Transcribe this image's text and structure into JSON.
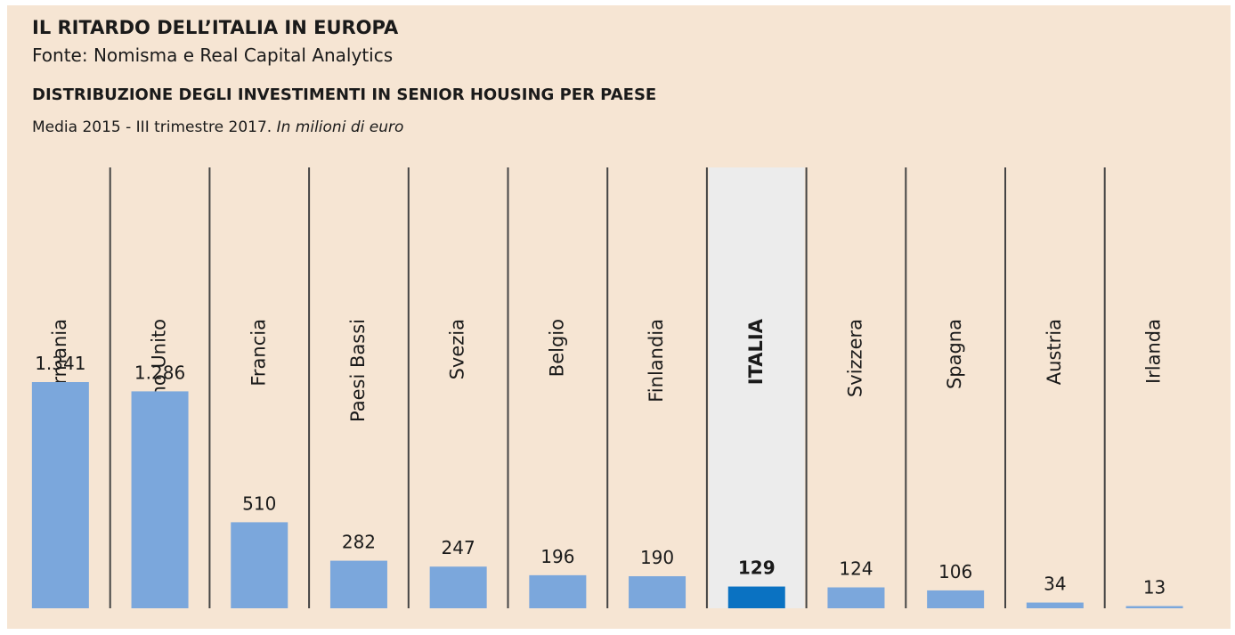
{
  "chart_data": {
    "type": "bar",
    "title": "IL RITARDO DELL’ITALIA IN EUROPA",
    "source": "Fonte: Nomisma e Real Capital Analytics",
    "subtitle": "DISTRIBUZIONE DEGLI INVESTIMENTI IN SENIOR HOUSING PER PAESE",
    "note": "Media 2015 - III trimestre 2017.",
    "unit": "In milioni di euro",
    "categories": [
      "Germania",
      "Regno Unito",
      "Francia",
      "Paesi Bassi",
      "Svezia",
      "Belgio",
      "Finlandia",
      "ITALIA",
      "Svizzera",
      "Spagna",
      "Austria",
      "Irlanda"
    ],
    "values": [
      1341,
      1286,
      510,
      282,
      247,
      196,
      190,
      129,
      124,
      106,
      34,
      13
    ],
    "value_labels": [
      "1.341",
      "1.286",
      "510",
      "282",
      "247",
      "196",
      "190",
      "129",
      "124",
      "106",
      "34",
      "13"
    ],
    "color": "#7ba7dc",
    "highlight": 7,
    "highlight_color": "#0a72c2"
  }
}
